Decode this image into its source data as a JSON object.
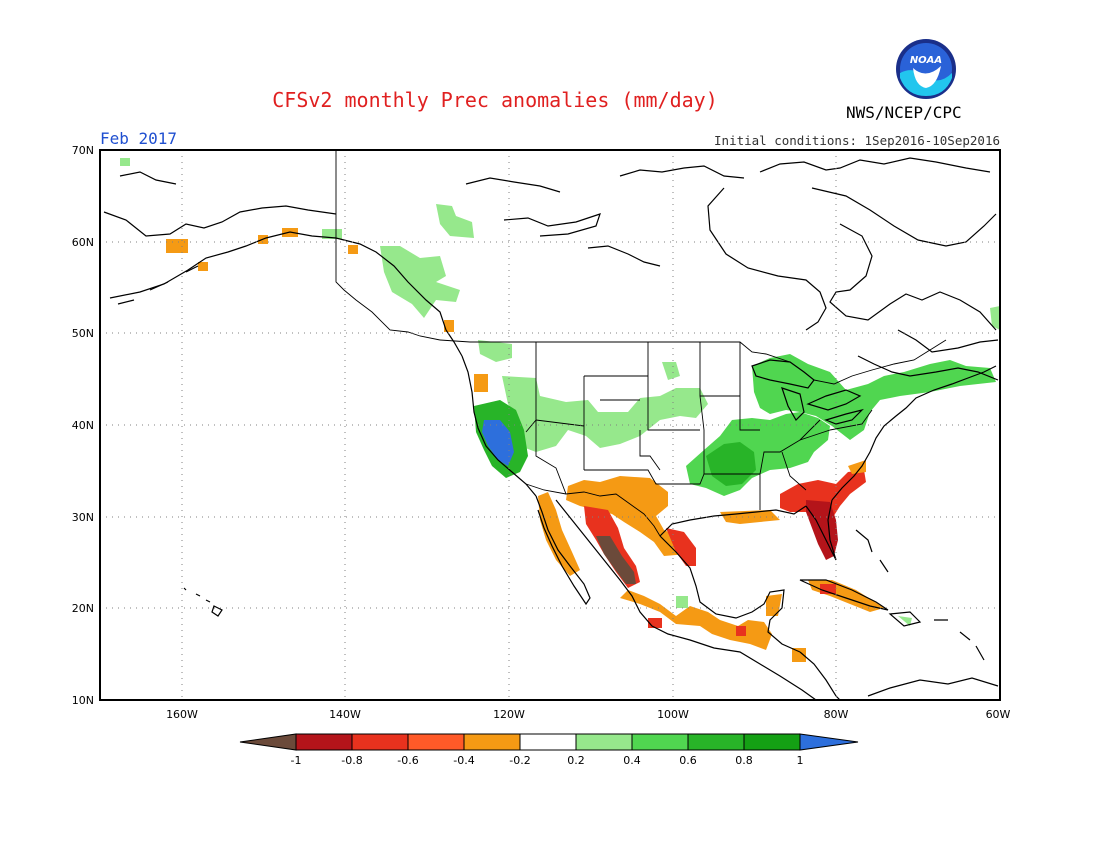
{
  "title": "CFSv2 monthly Prec anomalies (mm/day)",
  "agency": "NWS/NCEP/CPC",
  "logo_text": "NOAA",
  "period": "Feb 2017",
  "initial_conditions": "Initial conditions: 1Sep2016-10Sep2016",
  "map": {
    "lon_range": [
      -170,
      -60
    ],
    "lat_range": [
      10,
      70
    ],
    "lat_ticks": [
      "10N",
      "20N",
      "30N",
      "40N",
      "50N",
      "60N",
      "70N"
    ],
    "lon_ticks": [
      "160W",
      "140W",
      "120W",
      "100W",
      "80W",
      "60W"
    ]
  },
  "colorbar": {
    "labels": [
      "-1",
      "-0.8",
      "-0.6",
      "-0.4",
      "-0.2",
      "0.2",
      "0.4",
      "0.6",
      "0.8",
      "1"
    ],
    "colors": [
      "#6b4a3a",
      "#b4141a",
      "#e8321e",
      "#ff5a28",
      "#f59a14",
      "#ffffff",
      "#96e88c",
      "#50d650",
      "#28b428",
      "#14a014",
      "#2d6fdc"
    ]
  },
  "anomaly_regions": [
    {
      "region": "Central California",
      "level": "1",
      "color": "#2d6fdc"
    },
    {
      "region": "Northern California / Nevada",
      "level": "0.6",
      "color": "#28b428"
    },
    {
      "region": "Ohio Valley / Tennessee",
      "level": "0.6",
      "color": "#28b428"
    },
    {
      "region": "Great Lakes / Northeast",
      "level": "0.4",
      "color": "#50d650"
    },
    {
      "region": "Pacific Northwest / Alaska panhandle",
      "level": "0.2",
      "color": "#96e88c"
    },
    {
      "region": "Central Rockies / Plains",
      "level": "0.2",
      "color": "#96e88c"
    },
    {
      "region": "Florida peninsula",
      "level": "-0.8",
      "color": "#b4141a"
    },
    {
      "region": "Georgia / Southeast",
      "level": "-0.6",
      "color": "#e8321e"
    },
    {
      "region": "Northwest Mexico / Sinaloa",
      "level": "-1",
      "color": "#6b4a3a"
    },
    {
      "region": "Sonora / Chihuahua",
      "level": "-0.6",
      "color": "#e8321e"
    },
    {
      "region": "Arizona / New Mexico",
      "level": "-0.4",
      "color": "#f59a14"
    },
    {
      "region": "South Texas",
      "level": "-0.6",
      "color": "#e8321e"
    },
    {
      "region": "Southern Mexico / Central America",
      "level": "-0.4",
      "color": "#f59a14"
    },
    {
      "region": "Cuba",
      "level": "-0.4",
      "color": "#f59a14"
    },
    {
      "region": "Baja California",
      "level": "-0.4",
      "color": "#f59a14"
    },
    {
      "region": "Western Alaska",
      "level": "-0.4",
      "color": "#f59a14"
    }
  ]
}
